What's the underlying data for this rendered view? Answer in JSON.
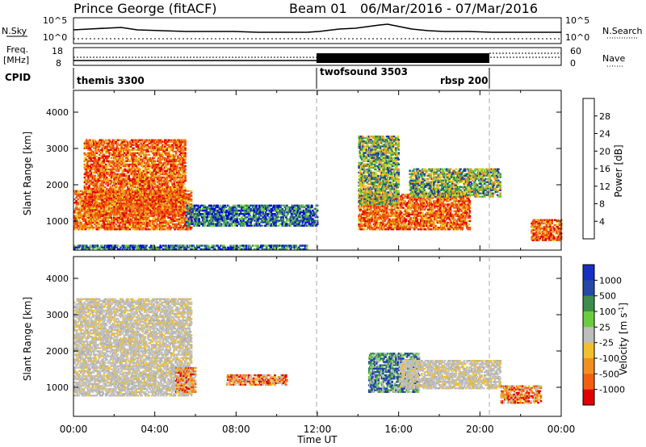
{
  "header": {
    "station": "Prince George (fitACF)",
    "beam": "Beam 01",
    "date_range": "06/Mar/2016 - 07/Mar/2016"
  },
  "top_panels": {
    "nsky_label": "N.Sky",
    "nsky_ticks": [
      "10^5",
      "10^0"
    ],
    "nsky_ticks_right": [
      "10^5",
      "10^0"
    ],
    "nsearch_label": "N.Search",
    "freq_label_1": "Freq.",
    "freq_label_2": "[MHz]",
    "freq_ticks": [
      "18",
      "8"
    ],
    "nave_label": "Nave",
    "nave_ticks": [
      "60",
      "0"
    ],
    "cpid_label": "CPID",
    "cpid_segments": [
      {
        "name": "themis 3300",
        "start_hour": 0
      },
      {
        "name": "twofsound 3503",
        "start_hour": 12
      },
      {
        "name": "rbsp 200",
        "start_hour": 20.7
      }
    ]
  },
  "chart_data": [
    {
      "type": "heatmap",
      "name": "power",
      "ylabel": "Slant Range [km]",
      "yticks": [
        1000,
        2000,
        3000,
        4000
      ],
      "ylim": [
        200,
        4600
      ],
      "xlim": [
        0,
        24
      ],
      "colorbar": {
        "label": "Power [dB]",
        "ticks": [
          "4",
          "8",
          "12",
          "16",
          "20",
          "24",
          "28"
        ],
        "colors": [
          "#0000e0",
          "#1e3ca8",
          "#2e8b57",
          "#6fcc3a",
          "#e6d020",
          "#f09020",
          "#f05010",
          "#e00000"
        ]
      },
      "features": [
        {
          "t0": 0.0,
          "t1": 5.8,
          "r0": 800,
          "r1": 1900,
          "level": "high"
        },
        {
          "t0": 0.5,
          "t1": 5.5,
          "r0": 1200,
          "r1": 3300,
          "level": "high"
        },
        {
          "t0": 0.0,
          "t1": 11.5,
          "r0": 250,
          "r1": 400,
          "level": "low"
        },
        {
          "t0": 5.5,
          "t1": 12.0,
          "r0": 900,
          "r1": 1500,
          "level": "low"
        },
        {
          "t0": 14.0,
          "t1": 19.5,
          "r0": 800,
          "r1": 1800,
          "level": "high"
        },
        {
          "t0": 14.0,
          "t1": 16.0,
          "r0": 1500,
          "r1": 3400,
          "level": "mid"
        },
        {
          "t0": 16.5,
          "t1": 21.0,
          "r0": 1700,
          "r1": 2500,
          "level": "mid"
        },
        {
          "t0": 22.5,
          "t1": 24.0,
          "r0": 500,
          "r1": 1100,
          "level": "high"
        }
      ]
    },
    {
      "type": "heatmap",
      "name": "velocity",
      "ylabel": "Slant Range [km]",
      "yticks": [
        1000,
        2000,
        3000,
        4000
      ],
      "ylim": [
        200,
        4600
      ],
      "xlim": [
        0,
        24
      ],
      "xlabel": "Time UT",
      "xticks": [
        "00:00",
        "04:00",
        "08:00",
        "12:00",
        "16:00",
        "20:00",
        "00:00"
      ],
      "colorbar": {
        "label": "Velocity [m s^-1]",
        "ticks": [
          "1000",
          "500",
          "100",
          "25",
          "-25",
          "-100",
          "-500",
          "-1000"
        ],
        "colors": [
          "#1830c0",
          "#2848a8",
          "#3c8c4c",
          "#6ccc40",
          "#bebebe",
          "#f0c030",
          "#f09020",
          "#f06010",
          "#e00000"
        ]
      },
      "features": [
        {
          "t0": 0.0,
          "t1": 5.8,
          "r0": 800,
          "r1": 3500,
          "level": "grey"
        },
        {
          "t0": 5.0,
          "t1": 6.0,
          "r0": 900,
          "r1": 1600,
          "level": "orange"
        },
        {
          "t0": 7.5,
          "t1": 10.5,
          "r0": 1100,
          "r1": 1400,
          "level": "orange"
        },
        {
          "t0": 14.5,
          "t1": 17.0,
          "r0": 900,
          "r1": 2000,
          "level": "green"
        },
        {
          "t0": 16.0,
          "t1": 21.0,
          "r0": 1000,
          "r1": 1800,
          "level": "grey"
        },
        {
          "t0": 21.0,
          "t1": 23.0,
          "r0": 600,
          "r1": 1100,
          "level": "orange"
        }
      ]
    }
  ]
}
